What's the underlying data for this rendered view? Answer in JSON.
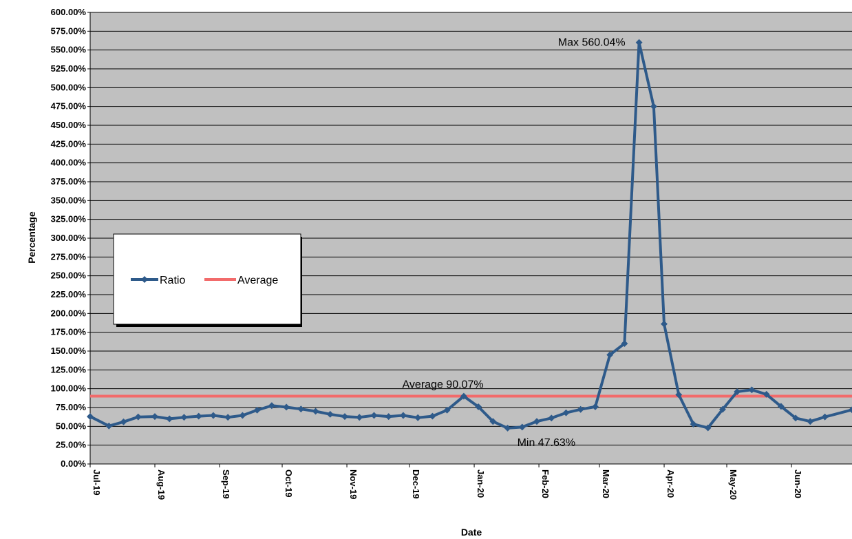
{
  "chart_data": {
    "type": "line",
    "xlabel": "Date",
    "ylabel": "Percentage",
    "ylim": [
      0,
      600
    ],
    "ytick_step": 25,
    "y_unit_suffix": "%",
    "grid": true,
    "legend_placement": "left-middle",
    "x_range": [
      "2019-07-01",
      "2020-06-30"
    ],
    "x_ticks": [
      {
        "date": "2019-07-01",
        "label": "Jul-19"
      },
      {
        "date": "2019-08-01",
        "label": "Aug-19"
      },
      {
        "date": "2019-09-01",
        "label": "Sep-19"
      },
      {
        "date": "2019-10-01",
        "label": "Oct-19"
      },
      {
        "date": "2019-11-01",
        "label": "Nov-19"
      },
      {
        "date": "2019-12-01",
        "label": "Dec-19"
      },
      {
        "date": "2020-01-01",
        "label": "Jan-20"
      },
      {
        "date": "2020-02-01",
        "label": "Feb-20"
      },
      {
        "date": "2020-03-01",
        "label": "Mar-20"
      },
      {
        "date": "2020-04-01",
        "label": "Apr-20"
      },
      {
        "date": "2020-05-01",
        "label": "May-20"
      },
      {
        "date": "2020-06-01",
        "label": "Jun-20"
      }
    ],
    "series": [
      {
        "name": "Ratio",
        "color": "#2E5A8A",
        "points": [
          {
            "x": "2019-07-01",
            "y": 63.0
          },
          {
            "x": "2019-07-10",
            "y": 50.5
          },
          {
            "x": "2019-07-17",
            "y": 56.0
          },
          {
            "x": "2019-07-24",
            "y": 62.5
          },
          {
            "x": "2019-08-01",
            "y": 63.0
          },
          {
            "x": "2019-08-08",
            "y": 60.0
          },
          {
            "x": "2019-08-15",
            "y": 62.0
          },
          {
            "x": "2019-08-22",
            "y": 63.5
          },
          {
            "x": "2019-08-29",
            "y": 64.5
          },
          {
            "x": "2019-09-05",
            "y": 62.0
          },
          {
            "x": "2019-09-12",
            "y": 64.5
          },
          {
            "x": "2019-09-19",
            "y": 71.5
          },
          {
            "x": "2019-09-26",
            "y": 77.5
          },
          {
            "x": "2019-10-03",
            "y": 75.5
          },
          {
            "x": "2019-10-10",
            "y": 73.0
          },
          {
            "x": "2019-10-17",
            "y": 70.0
          },
          {
            "x": "2019-10-24",
            "y": 66.0
          },
          {
            "x": "2019-10-31",
            "y": 63.0
          },
          {
            "x": "2019-11-07",
            "y": 62.0
          },
          {
            "x": "2019-11-14",
            "y": 64.5
          },
          {
            "x": "2019-11-21",
            "y": 63.0
          },
          {
            "x": "2019-11-28",
            "y": 64.5
          },
          {
            "x": "2019-12-05",
            "y": 61.5
          },
          {
            "x": "2019-12-12",
            "y": 63.5
          },
          {
            "x": "2019-12-19",
            "y": 71.5
          },
          {
            "x": "2019-12-27",
            "y": 90.0
          },
          {
            "x": "2020-01-03",
            "y": 76.0
          },
          {
            "x": "2020-01-10",
            "y": 56.5
          },
          {
            "x": "2020-01-17",
            "y": 47.63
          },
          {
            "x": "2020-01-24",
            "y": 49.0
          },
          {
            "x": "2020-01-31",
            "y": 56.5
          },
          {
            "x": "2020-02-07",
            "y": 61.0
          },
          {
            "x": "2020-02-14",
            "y": 68.0
          },
          {
            "x": "2020-02-21",
            "y": 72.5
          },
          {
            "x": "2020-02-28",
            "y": 76.0
          },
          {
            "x": "2020-03-06",
            "y": 145.0
          },
          {
            "x": "2020-03-13",
            "y": 160.0
          },
          {
            "x": "2020-03-20",
            "y": 560.04
          },
          {
            "x": "2020-03-27",
            "y": 475.0
          },
          {
            "x": "2020-04-01",
            "y": 186.0
          },
          {
            "x": "2020-04-08",
            "y": 92.0
          },
          {
            "x": "2020-04-15",
            "y": 53.0
          },
          {
            "x": "2020-04-22",
            "y": 48.0
          },
          {
            "x": "2020-04-29",
            "y": 72.5
          },
          {
            "x": "2020-05-06",
            "y": 96.0
          },
          {
            "x": "2020-05-13",
            "y": 98.5
          },
          {
            "x": "2020-05-20",
            "y": 92.5
          },
          {
            "x": "2020-05-27",
            "y": 76.5
          },
          {
            "x": "2020-06-03",
            "y": 61.0
          },
          {
            "x": "2020-06-10",
            "y": 56.5
          },
          {
            "x": "2020-06-17",
            "y": 62.5
          },
          {
            "x": "2020-06-30",
            "y": 72.0
          }
        ]
      },
      {
        "name": "Average",
        "color": "#F26B6B",
        "constant": 90.07
      }
    ],
    "annotations": [
      {
        "text": "Max 560.04%",
        "x": "2020-03-20",
        "y": 560.04,
        "anchor": "left-of"
      },
      {
        "text": "Average 90.07%",
        "x": "2019-12-17",
        "y": 90.07,
        "anchor": "above"
      },
      {
        "text": "Min 47.63%",
        "x": "2020-01-17",
        "y": 47.63,
        "anchor": "below"
      }
    ]
  }
}
